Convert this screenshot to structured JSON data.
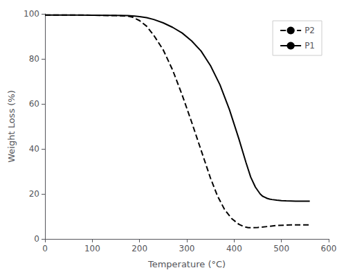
{
  "chart_data": {
    "type": "line",
    "xlabel": "Temperature (°C)",
    "ylabel": "Weight Loss (%)",
    "xlim": [
      0,
      600
    ],
    "ylim": [
      0,
      100
    ],
    "xticks": [
      0,
      100,
      200,
      300,
      400,
      500,
      600
    ],
    "yticks": [
      0,
      20,
      40,
      60,
      80,
      100
    ],
    "grid": false,
    "legend": "upper right",
    "series": [
      {
        "name": "P2",
        "color": "#000000",
        "line_style": "dashed",
        "x": [
          0,
          50,
          100,
          150,
          165,
          175,
          185,
          200,
          215,
          230,
          250,
          270,
          290,
          310,
          330,
          350,
          365,
          380,
          395,
          410,
          420,
          425,
          430,
          440,
          450,
          470,
          490,
          520,
          560
        ],
        "values": [
          99.5,
          99.5,
          99.4,
          99.2,
          99.1,
          99.0,
          98.5,
          97.0,
          94.5,
          90.5,
          84.0,
          75.0,
          64.0,
          52.0,
          39.5,
          27.0,
          19.0,
          13.0,
          9.0,
          6.5,
          5.5,
          5.2,
          5.0,
          5.0,
          5.1,
          5.5,
          6.0,
          6.2,
          6.2
        ]
      },
      {
        "name": "P1",
        "color": "#000000",
        "line_style": "solid",
        "x": [
          0,
          50,
          100,
          150,
          175,
          190,
          200,
          215,
          230,
          250,
          270,
          290,
          310,
          330,
          350,
          370,
          390,
          410,
          425,
          435,
          445,
          455,
          460,
          465,
          470,
          475,
          480,
          490,
          500,
          510,
          530,
          560
        ],
        "values": [
          99.5,
          99.5,
          99.4,
          99.3,
          99.2,
          99.0,
          98.8,
          98.3,
          97.5,
          96.0,
          94.0,
          91.5,
          88.0,
          83.5,
          77.0,
          68.5,
          57.5,
          44.5,
          34.0,
          27.5,
          23.0,
          20.0,
          19.0,
          18.5,
          18.0,
          17.7,
          17.5,
          17.2,
          17.0,
          16.9,
          16.8,
          16.8
        ]
      }
    ]
  }
}
